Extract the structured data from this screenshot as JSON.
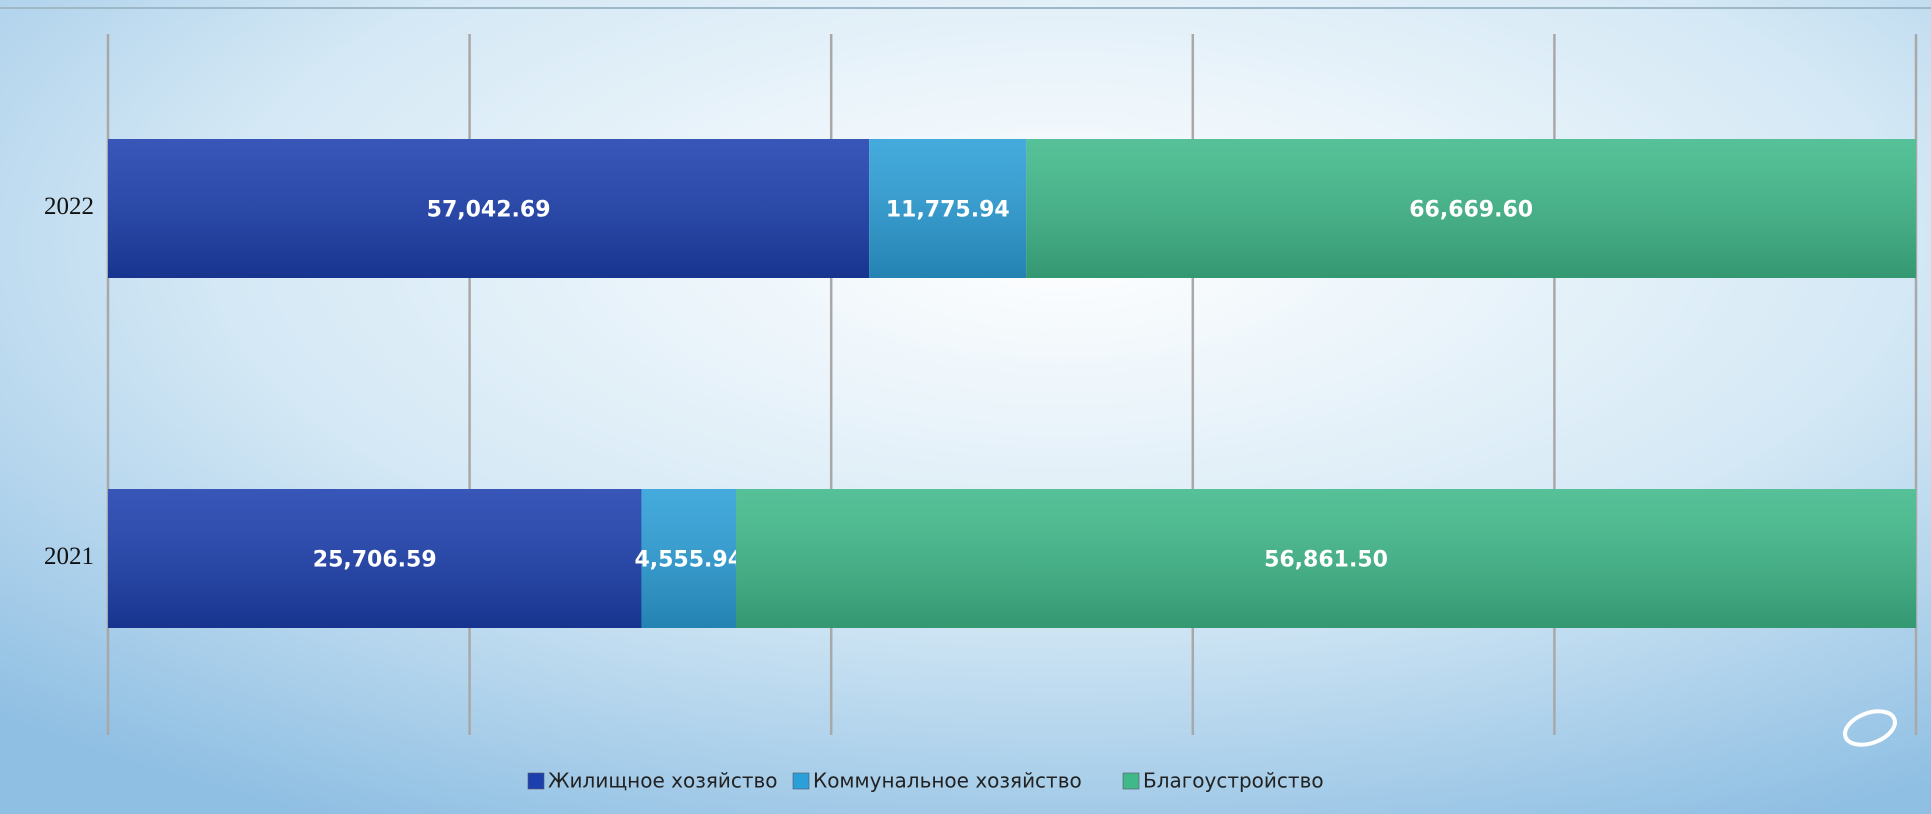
{
  "chart_data": {
    "type": "bar",
    "orientation": "horizontal",
    "stacked": "percent",
    "categories": [
      "2022",
      "2021"
    ],
    "series": [
      {
        "name": "Жилищное хозяйство",
        "color": "#1c3fae",
        "values": [
          57042.69,
          25706.59
        ],
        "value_labels": [
          "57,042.69",
          "25,706.59"
        ]
      },
      {
        "name": "Коммунальное хозяйство",
        "color": "#2b9fd8",
        "values": [
          11775.94,
          4555.94
        ],
        "value_labels": [
          "11,775.94",
          "4,555.94"
        ]
      },
      {
        "name": "Благоустройство",
        "color": "#3fb98a",
        "values": [
          66669.6,
          56861.5
        ],
        "value_labels": [
          "66,669.60",
          "56,861.50"
        ]
      }
    ],
    "xlim": [
      0,
      100
    ],
    "xticks": [
      0,
      20,
      40,
      60,
      80,
      100
    ],
    "grid": true,
    "legend": "bottom"
  }
}
